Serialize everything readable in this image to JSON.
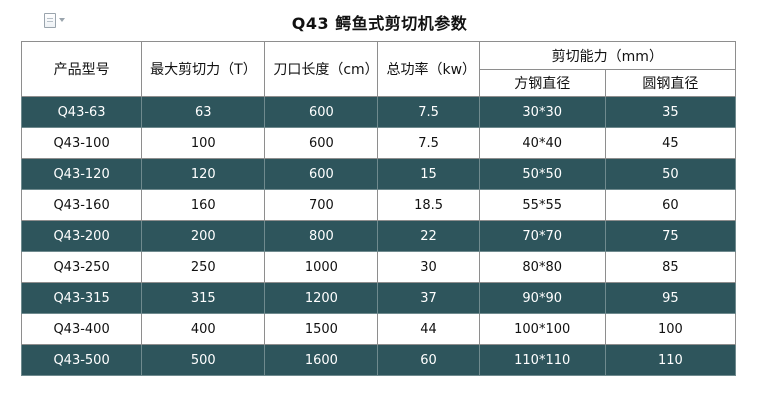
{
  "title": "Q43 鳄鱼式剪切机参数",
  "header": {
    "model": "产品型号",
    "max_force": "最大剪切力（T）",
    "blade_length": "刀口长度（cm）",
    "total_power": "总功率（kw）",
    "cutting_capacity": "剪切能力（mm）",
    "square_steel": "方钢直径",
    "round_steel": "圆钢直径"
  },
  "rows": [
    {
      "model": "Q43-63",
      "force": "63",
      "blade": "600",
      "power": "7.5",
      "square": "30*30",
      "round": "35"
    },
    {
      "model": "Q43-100",
      "force": "100",
      "blade": "600",
      "power": "7.5",
      "square": "40*40",
      "round": "45"
    },
    {
      "model": "Q43-120",
      "force": "120",
      "blade": "600",
      "power": "15",
      "square": "50*50",
      "round": "50"
    },
    {
      "model": "Q43-160",
      "force": "160",
      "blade": "700",
      "power": "18.5",
      "square": "55*55",
      "round": "60"
    },
    {
      "model": "Q43-200",
      "force": "200",
      "blade": "800",
      "power": "22",
      "square": "70*70",
      "round": "75"
    },
    {
      "model": "Q43-250",
      "force": "250",
      "blade": "1000",
      "power": "30",
      "square": "80*80",
      "round": "85"
    },
    {
      "model": "Q43-315",
      "force": "315",
      "blade": "1200",
      "power": "37",
      "square": "90*90",
      "round": "95"
    },
    {
      "model": "Q43-400",
      "force": "400",
      "blade": "1500",
      "power": "44",
      "square": "100*100",
      "round": "100"
    },
    {
      "model": "Q43-500",
      "force": "500",
      "blade": "1600",
      "power": "60",
      "square": "110*110",
      "round": "110"
    }
  ],
  "colors": {
    "dark_row": "#2e555c",
    "light_row": "#ffffff",
    "border": "#8e8e8e"
  },
  "icons": {
    "document": "document-icon",
    "dropdown": "chevron-down-icon"
  }
}
